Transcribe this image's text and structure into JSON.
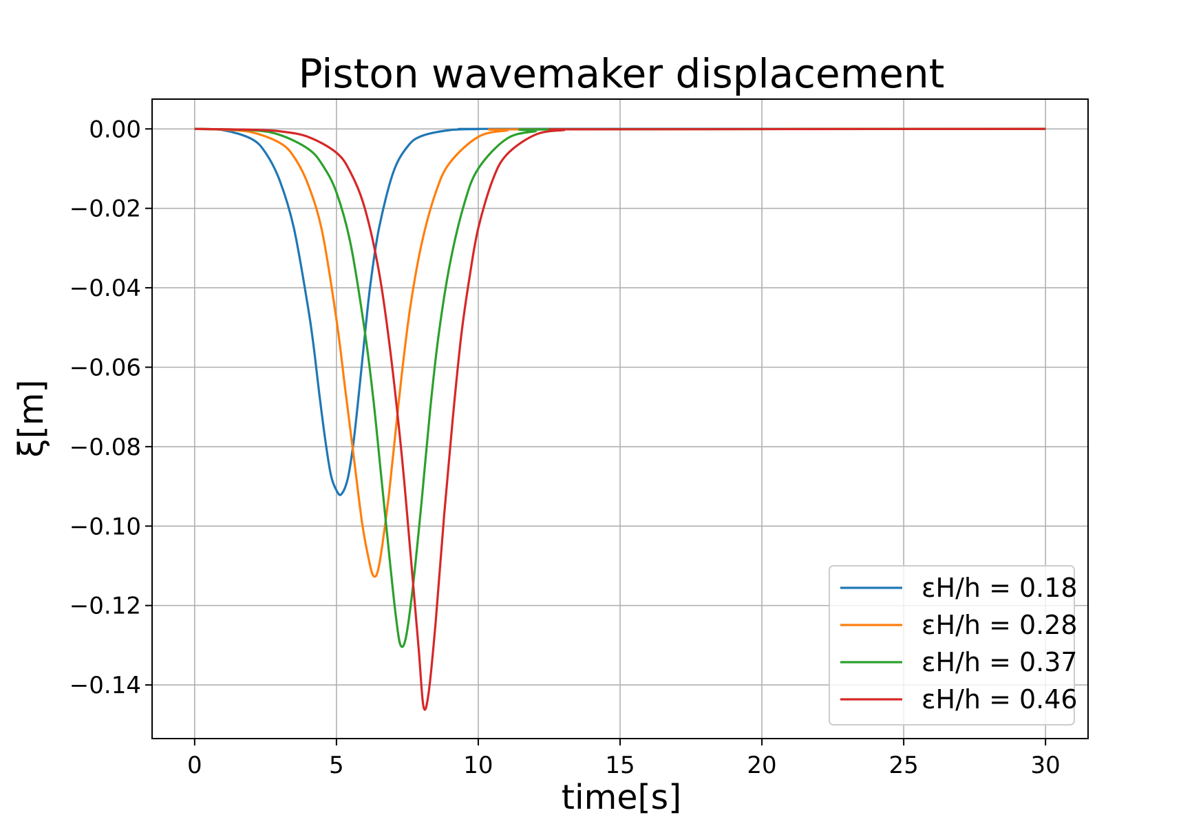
{
  "chart_data": {
    "type": "line",
    "title": "Piston wavemaker displacement",
    "xlabel": "time[s]",
    "ylabel": "ξ[m]",
    "xlim": [
      -1.5,
      31.5
    ],
    "ylim": [
      -0.1535,
      0.0075
    ],
    "xticks": [
      0,
      5,
      10,
      15,
      20,
      25,
      30
    ],
    "xtick_labels": [
      "0",
      "5",
      "10",
      "15",
      "20",
      "25",
      "30"
    ],
    "yticks": [
      0.0,
      -0.02,
      -0.04,
      -0.06,
      -0.08,
      -0.1,
      -0.12,
      -0.14
    ],
    "ytick_labels": [
      "0.00",
      "−0.02",
      "−0.04",
      "−0.06",
      "−0.08",
      "−0.10",
      "−0.12",
      "−0.14"
    ],
    "grid": true,
    "legend_position": "lower-right",
    "x_domain": [
      0,
      30
    ],
    "series": [
      {
        "name": "εH/h = 0.18",
        "color": "#1f77b4",
        "x": [
          0,
          1,
          2,
          2.5,
          3,
          3.5,
          4,
          4.2,
          4.4,
          4.6,
          4.8,
          5.0,
          5.17,
          5.4,
          5.6,
          5.8,
          6.0,
          6.2,
          6.5,
          7.0,
          7.5,
          8.0,
          9.0,
          10.0,
          11.0,
          30
        ],
        "y": [
          0.0,
          -0.0003,
          -0.0025,
          -0.006,
          -0.013,
          -0.025,
          -0.045,
          -0.055,
          -0.067,
          -0.078,
          -0.087,
          -0.091,
          -0.092,
          -0.088,
          -0.079,
          -0.066,
          -0.052,
          -0.039,
          -0.025,
          -0.011,
          -0.0045,
          -0.0018,
          -0.0003,
          -5e-05,
          0.0,
          0.0
        ]
      },
      {
        "name": "εH/h = 0.28",
        "color": "#ff7f0e",
        "x": [
          0,
          1,
          2,
          3,
          3.5,
          4,
          4.5,
          5,
          5.3,
          5.6,
          5.9,
          6.1,
          6.3,
          6.5,
          6.8,
          7.0,
          7.3,
          7.6,
          8.0,
          8.5,
          9.0,
          10.0,
          11.0,
          12.0,
          30
        ],
        "y": [
          0.0,
          -0.0002,
          -0.0008,
          -0.0035,
          -0.007,
          -0.014,
          -0.026,
          -0.048,
          -0.065,
          -0.082,
          -0.099,
          -0.107,
          -0.1125,
          -0.11,
          -0.095,
          -0.082,
          -0.062,
          -0.045,
          -0.029,
          -0.016,
          -0.0085,
          -0.002,
          -0.0004,
          -0.0001,
          0.0
        ]
      },
      {
        "name": "εH/h = 0.37",
        "color": "#2ca02c",
        "x": [
          0,
          2,
          3,
          4,
          4.5,
          5,
          5.5,
          6.0,
          6.3,
          6.6,
          6.9,
          7.1,
          7.26,
          7.45,
          7.7,
          8.0,
          8.3,
          8.6,
          9.0,
          9.5,
          10.0,
          11.0,
          12.0,
          13.0,
          30
        ],
        "y": [
          0.0,
          -0.0003,
          -0.0015,
          -0.005,
          -0.009,
          -0.016,
          -0.029,
          -0.051,
          -0.068,
          -0.089,
          -0.11,
          -0.123,
          -0.13,
          -0.128,
          -0.115,
          -0.094,
          -0.071,
          -0.052,
          -0.034,
          -0.019,
          -0.01,
          -0.0025,
          -0.0006,
          -0.0001,
          0.0
        ]
      },
      {
        "name": "εH/h = 0.46",
        "color": "#d62728",
        "x": [
          0,
          2,
          3,
          4,
          5,
          5.5,
          6.0,
          6.5,
          6.9,
          7.3,
          7.6,
          7.9,
          8.07,
          8.25,
          8.5,
          8.8,
          9.1,
          9.4,
          9.7,
          10.0,
          10.5,
          11.0,
          12.0,
          13.0,
          14.0,
          30
        ],
        "y": [
          0.0,
          -0.0002,
          -0.0006,
          -0.002,
          -0.006,
          -0.011,
          -0.02,
          -0.036,
          -0.056,
          -0.082,
          -0.106,
          -0.131,
          -0.1455,
          -0.142,
          -0.124,
          -0.097,
          -0.073,
          -0.052,
          -0.037,
          -0.025,
          -0.013,
          -0.0065,
          -0.0015,
          -0.0003,
          -0.0001,
          0.0
        ]
      }
    ]
  }
}
